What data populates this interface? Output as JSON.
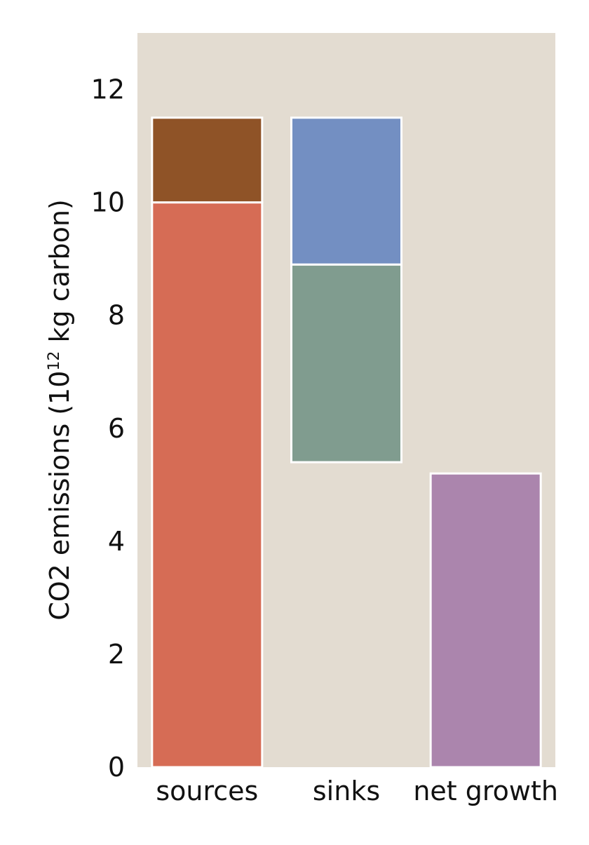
{
  "chart_data": {
    "type": "bar",
    "categories": [
      "sources",
      "sinks",
      "net growth"
    ],
    "ylabel": {
      "prefix": "CO2 emissions (10",
      "superscript": "12",
      "suffix": " kg carbon)"
    },
    "ylim": [
      0,
      13
    ],
    "yticks": [
      0,
      2,
      4,
      6,
      8,
      10,
      12
    ],
    "grid": false,
    "legend": "none",
    "bars": [
      {
        "category": "sources",
        "bottom": 0,
        "top": 10.0,
        "color": "#d66c55"
      },
      {
        "category": "sources",
        "bottom": 10.0,
        "top": 11.5,
        "color": "#8f5327"
      },
      {
        "category": "sinks",
        "bottom": 5.4,
        "top": 8.9,
        "color": "#809c8f"
      },
      {
        "category": "sinks",
        "bottom": 8.9,
        "top": 11.5,
        "color": "#738fc2"
      },
      {
        "category": "net growth",
        "bottom": 0,
        "top": 5.2,
        "color": "#ab85ad"
      }
    ],
    "colors": {
      "plot_background": "#e3dcd1",
      "bar_edge": "#ffffff"
    }
  }
}
